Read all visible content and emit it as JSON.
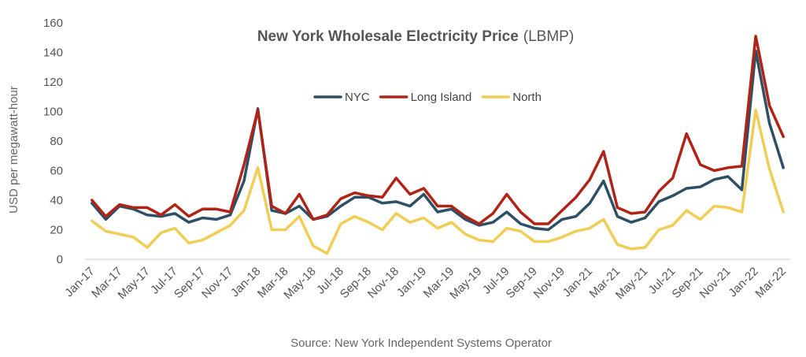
{
  "chart_data": {
    "type": "line",
    "title_bold": "New York Wholesale Electricity Price",
    "title_suffix": "(LBMP)",
    "ylabel": "USD per megawatt-hour",
    "source": "Source: New York Independent Systems Operator",
    "ylim": [
      0,
      160
    ],
    "yticks": [
      0,
      20,
      40,
      60,
      80,
      100,
      120,
      140,
      160
    ],
    "grid": false,
    "legend_position": "upper-center",
    "categories": [
      "Jan-17",
      "Feb-17",
      "Mar-17",
      "Apr-17",
      "May-17",
      "Jun-17",
      "Jul-17",
      "Aug-17",
      "Sep-17",
      "Oct-17",
      "Nov-17",
      "Dec-17",
      "Jan-18",
      "Feb-18",
      "Mar-18",
      "Apr-18",
      "May-18",
      "Jun-18",
      "Jul-18",
      "Aug-18",
      "Sep-18",
      "Oct-18",
      "Nov-18",
      "Dec-18",
      "Jan-19",
      "Feb-19",
      "Mar-19",
      "Apr-19",
      "May-19",
      "Jun-19",
      "Jul-19",
      "Aug-19",
      "Sep-19",
      "Oct-19",
      "Nov-19",
      "Dec-19",
      "Jan-21",
      "Feb-21",
      "Mar-21",
      "Apr-21",
      "May-21",
      "Jun-21",
      "Jul-21",
      "Aug-21",
      "Sep-21",
      "Oct-21",
      "Nov-21",
      "Dec-21",
      "Jan-22",
      "Feb-22",
      "Mar-22"
    ],
    "tick_labels": [
      "Jan-17",
      "Mar-17",
      "May-17",
      "Jul-17",
      "Sep-17",
      "Nov-17",
      "Jan-18",
      "Mar-18",
      "May-18",
      "Jul-18",
      "Sep-18",
      "Nov-18",
      "Jan-19",
      "Mar-19",
      "May-19",
      "Jul-19",
      "Sep-19",
      "Nov-19",
      "Jan-21",
      "Mar-21",
      "May-21",
      "Jul-21",
      "Sep-21",
      "Nov-21",
      "Jan-22",
      "Mar-22"
    ],
    "series": [
      {
        "name": "NYC",
        "color": "#2e5066",
        "values": [
          38,
          27,
          36,
          34,
          30,
          29,
          31,
          25,
          28,
          27,
          30,
          53,
          102,
          33,
          31,
          36,
          27,
          29,
          36,
          42,
          42,
          38,
          39,
          36,
          44,
          32,
          34,
          27,
          23,
          25,
          32,
          24,
          21,
          20,
          27,
          29,
          38,
          53,
          29,
          25,
          28,
          39,
          43,
          48,
          49,
          54,
          56,
          47,
          141,
          92,
          62
        ]
      },
      {
        "name": "Long Island",
        "color": "#b02418",
        "values": [
          40,
          29,
          37,
          35,
          35,
          30,
          37,
          29,
          34,
          34,
          32,
          64,
          101,
          36,
          31,
          44,
          27,
          30,
          41,
          45,
          43,
          42,
          55,
          44,
          48,
          36,
          36,
          29,
          24,
          31,
          44,
          32,
          24,
          24,
          33,
          42,
          54,
          73,
          35,
          31,
          32,
          46,
          55,
          85,
          64,
          60,
          62,
          63,
          151,
          104,
          83
        ]
      },
      {
        "name": "North",
        "color": "#f0cd55",
        "values": [
          26,
          19,
          17,
          15,
          8,
          18,
          21,
          11,
          13,
          18,
          23,
          33,
          62,
          20,
          20,
          29,
          9,
          4,
          24,
          29,
          25,
          20,
          31,
          25,
          28,
          21,
          25,
          17,
          13,
          12,
          21,
          19,
          12,
          12,
          15,
          19,
          21,
          27,
          10,
          7,
          8,
          20,
          23,
          33,
          27,
          36,
          35,
          32,
          101,
          61,
          32
        ]
      }
    ]
  }
}
